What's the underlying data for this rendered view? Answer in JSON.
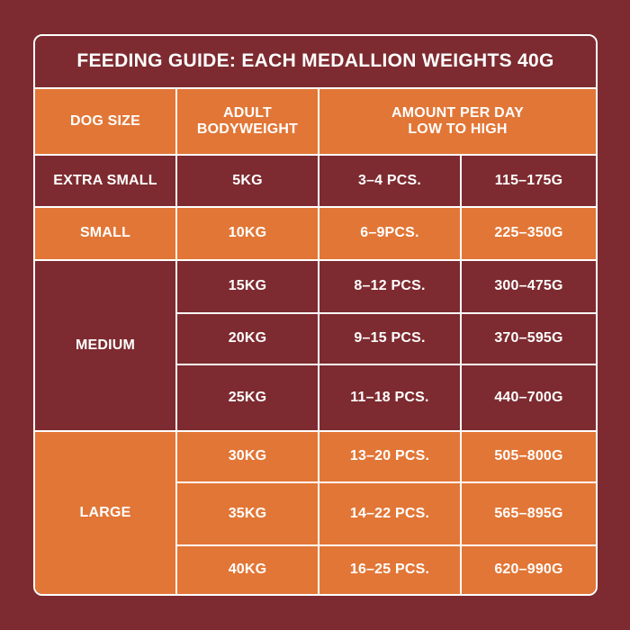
{
  "title": "FEEDING GUIDE: EACH MEDALLION WEIGHTS 40G",
  "headers": {
    "dog_size": "DOG SIZE",
    "bodyweight": "ADULT\nBODYWEIGHT",
    "amount": "AMOUNT PER DAY\nLOW TO HIGH"
  },
  "rows": [
    {
      "size": "EXTRA SMALL",
      "weight": "5KG",
      "pieces": "3–4 PCS.",
      "grams": "115–175G"
    },
    {
      "size": "SMALL",
      "weight": "10KG",
      "pieces": "6–9PCS.",
      "grams": "225–350G"
    },
    {
      "size": "MEDIUM",
      "weight": "15KG",
      "pieces": "8–12 PCS.",
      "grams": "300–475G"
    },
    {
      "size": "",
      "weight": "20KG",
      "pieces": "9–15 PCS.",
      "grams": "370–595G"
    },
    {
      "size": "",
      "weight": "25KG",
      "pieces": "11–18 PCS.",
      "grams": "440–700G"
    },
    {
      "size": "LARGE",
      "weight": "30KG",
      "pieces": "13–20 PCS.",
      "grams": "505–800G"
    },
    {
      "size": "",
      "weight": "35KG",
      "pieces": "14–22 PCS.",
      "grams": "565–895G"
    },
    {
      "size": "",
      "weight": "40KG",
      "pieces": "16–25 PCS.",
      "grams": "620–990G"
    }
  ],
  "colors": {
    "background": "#7d2b30",
    "accent": "#e27636",
    "border": "#ffffff",
    "text": "#ffffff"
  }
}
